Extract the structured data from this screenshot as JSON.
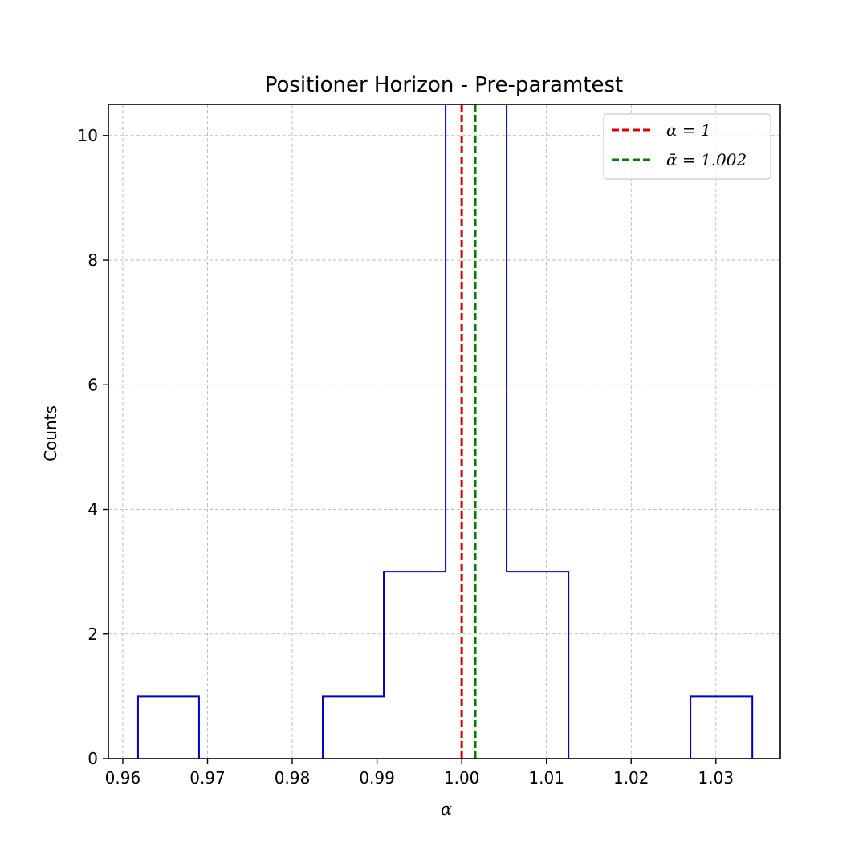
{
  "chart_data": {
    "type": "histogram",
    "title": "Positioner Horizon - Pre-paramtest",
    "xlabel": "α",
    "ylabel": "Counts",
    "xlim": [
      0.9583,
      1.0376
    ],
    "ylim": [
      0,
      10.5
    ],
    "xticks": [
      0.96,
      0.97,
      0.98,
      0.99,
      1.0,
      1.01,
      1.02,
      1.03
    ],
    "xtick_labels": [
      "0.96",
      "0.97",
      "0.98",
      "0.99",
      "1.00",
      "1.01",
      "1.02",
      "1.03"
    ],
    "yticks": [
      0,
      2,
      4,
      6,
      8,
      10
    ],
    "ytick_labels": [
      "0",
      "2",
      "4",
      "6",
      "8",
      "10"
    ],
    "grid": true,
    "histogram": {
      "color": "#0000cc",
      "bin_edges": [
        0.9618,
        0.969,
        0.9763,
        0.9836,
        0.9908,
        0.9981,
        1.0053,
        1.0126,
        1.0198,
        1.027,
        1.0343
      ],
      "counts": [
        1,
        0,
        0,
        1,
        3,
        11,
        3,
        0,
        0,
        1
      ]
    },
    "vlines": [
      {
        "name": "α = 1",
        "x": 1.0,
        "color": "#dd0000",
        "style": "dashed"
      },
      {
        "name": "ᾱ = 1.002",
        "x": 1.0016,
        "color": "#007f00",
        "style": "dashed"
      }
    ],
    "legend": {
      "placement": "top-right",
      "entries": [
        {
          "label": "α = 1",
          "color": "#dd0000"
        },
        {
          "label": "ᾱ = 1.002",
          "color": "#007f00"
        }
      ]
    }
  }
}
